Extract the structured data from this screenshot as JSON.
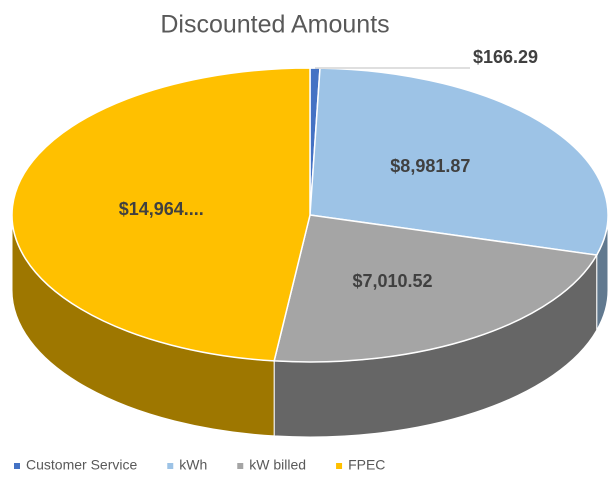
{
  "chart_data": {
    "type": "pie3d",
    "title": "Discounted Amounts",
    "categories": [
      "Customer Service",
      "kWh",
      "kW billed",
      "FPEC"
    ],
    "values": [
      166.29,
      8981.87,
      7010.52,
      14964
    ],
    "value_labels": [
      "$166.29",
      "$8,981.87",
      "$7,010.52",
      "$14,964...."
    ],
    "colors": [
      "#4472c4",
      "#9dc3e6",
      "#a5a5a5",
      "#ffc000"
    ],
    "legend": "bottom"
  }
}
